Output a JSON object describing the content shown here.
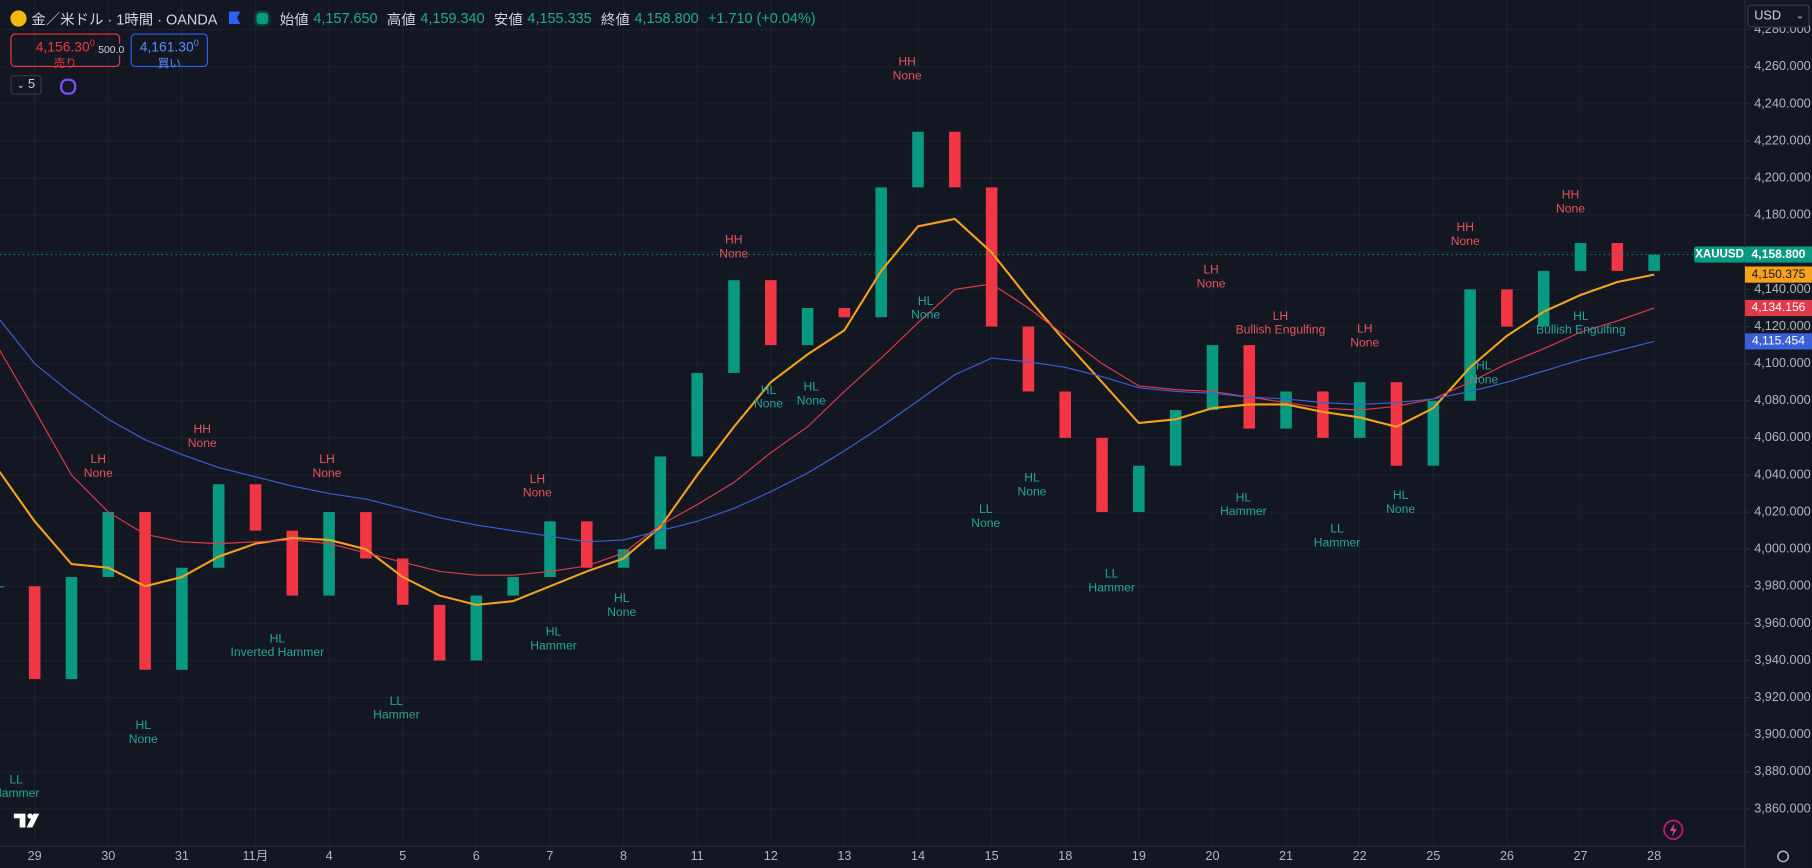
{
  "header": {
    "symbol": "金／米ドル · 1時間 · OANDA",
    "open_label": "始値",
    "open": "4,157.650",
    "high_label": "高値",
    "high": "4,159.340",
    "low_label": "安値",
    "low": "4,155.335",
    "close_label": "終値",
    "close": "4,158.800",
    "change": "+1.710 (+0.04%)"
  },
  "trade": {
    "sell_price": "4,156.30",
    "sell_sup": "0",
    "sell_label": "売り",
    "spread": "500.0",
    "buy_price": "4,161.30",
    "buy_sup": "0",
    "buy_label": "買い"
  },
  "toolbar": {
    "indicators": "5",
    "currency": "USD"
  },
  "price_scale": {
    "symbol": "XAUUSD",
    "last": "4,158.800",
    "ma_fast": "4,150.375",
    "ma_mid": "4,134.156",
    "ma_slow": "4,115.454"
  },
  "chart_data": {
    "type": "candlestick",
    "categories": [
      null,
      "29",
      null,
      "30",
      null,
      "31",
      null,
      "11月",
      null,
      "4",
      null,
      "5",
      null,
      "6",
      null,
      "7",
      null,
      "8",
      null,
      "11",
      null,
      "12",
      null,
      "13",
      null,
      "14",
      null,
      "15",
      null,
      "18",
      null,
      "19",
      null,
      "20",
      null,
      "21",
      null,
      "22",
      null,
      "25",
      null,
      "26",
      null,
      "27",
      null,
      "28"
    ],
    "candles": {
      "up_color": "#089981",
      "down_color": "#f23645",
      "values": [
        3980,
        3930,
        3985,
        4020,
        3935,
        3990,
        4035,
        4010,
        3975,
        4020,
        3995,
        3970,
        3940,
        3975,
        3985,
        4015,
        3990,
        4000,
        4050,
        4095,
        4145,
        4110,
        4130,
        4125,
        4195,
        4225,
        4195,
        4120,
        4085,
        4060,
        4020,
        4045,
        4075,
        4110,
        4065,
        4085,
        4060,
        4090,
        4045,
        4080,
        4140,
        4120,
        4150,
        4165,
        4150,
        4158.8
      ]
    },
    "moving_averages": [
      {
        "color": "#f7a21b",
        "values": [
          4043,
          4015,
          3992,
          3990,
          3980,
          3985,
          3996,
          4003,
          4006,
          4005,
          4000,
          3985,
          3975,
          3970,
          3972,
          3980,
          3988,
          3995,
          4012,
          4040,
          4066,
          4090,
          4105,
          4118,
          4150,
          4174,
          4178,
          4160,
          4135,
          4112,
          4090,
          4068,
          4070,
          4076,
          4078,
          4078,
          4074,
          4071,
          4066,
          4076,
          4098,
          4115,
          4128,
          4137,
          4144,
          4148
        ]
      },
      {
        "color": "#e03a48",
        "values": [
          4109,
          4075,
          4040,
          4020,
          4008,
          4004,
          4003,
          4004,
          4005,
          4003,
          3998,
          3993,
          3988,
          3986,
          3986,
          3988,
          3991,
          3998,
          4013,
          4024,
          4036,
          4052,
          4066,
          4085,
          4103,
          4122,
          4140,
          4143,
          4130,
          4115,
          4100,
          4088,
          4086,
          4085,
          4082,
          4079,
          4076,
          4075,
          4077,
          4081,
          4090,
          4100,
          4108,
          4117,
          4123,
          4130
        ]
      },
      {
        "color": "#3a5fd9",
        "values": [
          4125,
          4100,
          4084,
          4070,
          4059,
          4051,
          4044,
          4039,
          4034,
          4030,
          4027,
          4022,
          4017,
          4013,
          4010,
          4007,
          4004,
          4005,
          4010,
          4015,
          4022,
          4031,
          4041,
          4053,
          4066,
          4080,
          4094,
          4103,
          4101,
          4098,
          4093,
          4087,
          4085,
          4084,
          4082,
          4081,
          4079,
          4078,
          4079,
          4081,
          4085,
          4090,
          4096,
          4102,
          4107,
          4112
        ]
      }
    ],
    "ylim": [
      3840,
      4296
    ],
    "yticks": [
      {
        "value": 3860,
        "label": "3,860.000"
      },
      {
        "value": 3880,
        "label": "3,880.000"
      },
      {
        "value": 3900,
        "label": "3,900.000"
      },
      {
        "value": 3920,
        "label": "3,920.000"
      },
      {
        "value": 3940,
        "label": "3,940.000"
      },
      {
        "value": 3960,
        "label": "3,960.000"
      },
      {
        "value": 3980,
        "label": "3,980.000"
      },
      {
        "value": 4000,
        "label": "4,000.000"
      },
      {
        "value": 4020,
        "label": "4,020.000"
      },
      {
        "value": 4040,
        "label": "4,040.000"
      },
      {
        "value": 4060,
        "label": "4,060.000"
      },
      {
        "value": 4080,
        "label": "4,080.000"
      },
      {
        "value": 4100,
        "label": "4,100.000"
      },
      {
        "value": 4120,
        "label": "4,120.000"
      },
      {
        "value": 4140,
        "label": "4,140.000"
      },
      {
        "value": 4160,
        "label": "4,160.000"
      },
      {
        "value": 4180,
        "label": "4,180.000"
      },
      {
        "value": 4200,
        "label": "4,200.000"
      },
      {
        "value": 4220,
        "label": "4,220.000"
      },
      {
        "value": 4240,
        "label": "4,240.000"
      },
      {
        "value": 4260,
        "label": "4,260.000"
      },
      {
        "value": 4280,
        "label": "4,280.000"
      }
    ],
    "grid": true,
    "pivots": {
      "highs": {
        "color": "#e5545e",
        "items": [
          {
            "label": "LH",
            "pattern": "None"
          },
          {
            "label": "HH",
            "pattern": "None"
          },
          {
            "label": "LH",
            "pattern": "None"
          },
          {
            "label": "LH",
            "pattern": "None"
          },
          {
            "label": "HH",
            "pattern": "None"
          },
          {
            "label": "HH",
            "pattern": "None"
          },
          {
            "label": "LH",
            "pattern": "None"
          },
          {
            "label": "LH",
            "pattern": "Bullish Engulfing"
          },
          {
            "label": "LH",
            "pattern": "None"
          },
          {
            "label": "HH",
            "pattern": "None"
          },
          {
            "label": "HH",
            "pattern": "None"
          }
        ]
      },
      "lows": {
        "color": "#26a69a",
        "items": [
          {
            "label": "LL",
            "pattern": "Hammer"
          },
          {
            "label": "HL",
            "pattern": "None"
          },
          {
            "label": "HL",
            "pattern": "Inverted Hammer"
          },
          {
            "label": "LL",
            "pattern": "Hammer"
          },
          {
            "label": "HL",
            "pattern": "Hammer"
          },
          {
            "label": "HL",
            "pattern": "None"
          },
          {
            "label": "HL",
            "pattern": "None"
          },
          {
            "label": "HL",
            "pattern": "None"
          },
          {
            "label": "HL",
            "pattern": "None"
          },
          {
            "label": "LL",
            "pattern": "None"
          },
          {
            "label": "HL",
            "pattern": "None"
          },
          {
            "label": "LL",
            "pattern": "Hammer"
          },
          {
            "label": "HL",
            "pattern": "Hammer"
          },
          {
            "label": "LL",
            "pattern": "Hammer"
          },
          {
            "label": "HL",
            "pattern": "None"
          },
          {
            "label": "HL",
            "pattern": "None"
          },
          {
            "label": "HL",
            "pattern": "Bullish Engulfing"
          }
        ]
      }
    }
  }
}
